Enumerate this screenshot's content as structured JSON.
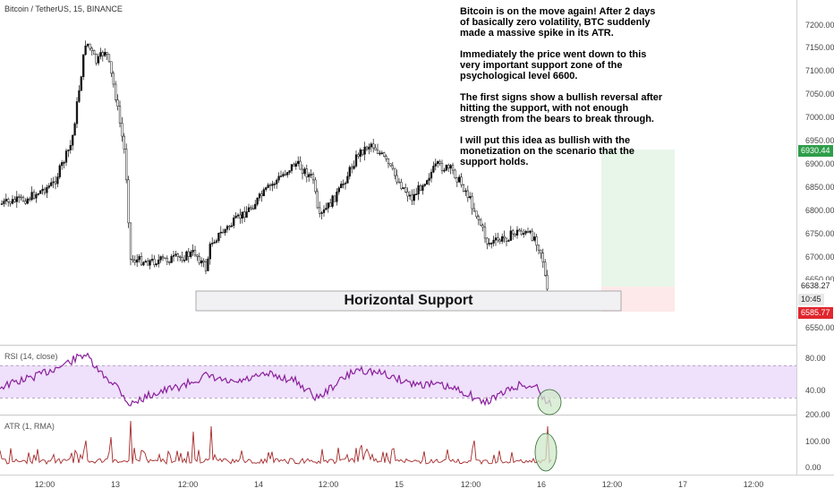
{
  "header": {
    "symbol_title": "Bitcoin / TetherUS, 15, BINANCE"
  },
  "annotation": {
    "paragraphs": [
      "Bitcoin is on the move again! After 2 days of basically zero volatility, BTC suddenly made a massive spike in its ATR.",
      "Immediately the price went down to this very important support zone of the psychological level 6600.",
      "The first signs show a bullish reversal after hitting the support, with not enough strength from the bears to break through.",
      "I will put this idea as bullish with the monetization on the scenario that the support holds."
    ],
    "support_label": "Horizontal Support"
  },
  "price_axis": {
    "ticks": [
      "7200.00",
      "7150.00",
      "7100.00",
      "7050.00",
      "7000.00",
      "6950.00",
      "6900.00",
      "6850.00",
      "6800.00",
      "6750.00",
      "6700.00",
      "6650.00",
      "6550.00"
    ],
    "tags": {
      "target": "6930.44",
      "current": "6638.27",
      "countdown": "10:45",
      "stop": "6585.77"
    }
  },
  "time_axis": {
    "ticks": [
      "12:00",
      "13",
      "12:00",
      "14",
      "12:00",
      "15",
      "12:00",
      "16",
      "12:00",
      "17",
      "12:00"
    ]
  },
  "rsi": {
    "label": "RSI (14, close)",
    "ticks": [
      "80.00",
      "40.00"
    ]
  },
  "atr": {
    "label": "ATR (1, RMA)",
    "ticks": [
      "200.00",
      "100.00",
      "0.00"
    ]
  },
  "colors": {
    "candle": "#111111",
    "rsi_line": "#8a1f9c",
    "rsi_band": "#efe0fb",
    "atr_line": "#a52a2a",
    "target_zone": "#e7f6e9",
    "stop_zone": "#fde8ea",
    "target_tag": "#2e9e4a",
    "stop_tag": "#e0262e",
    "highlight_circle": "#cfe8c9"
  }
}
